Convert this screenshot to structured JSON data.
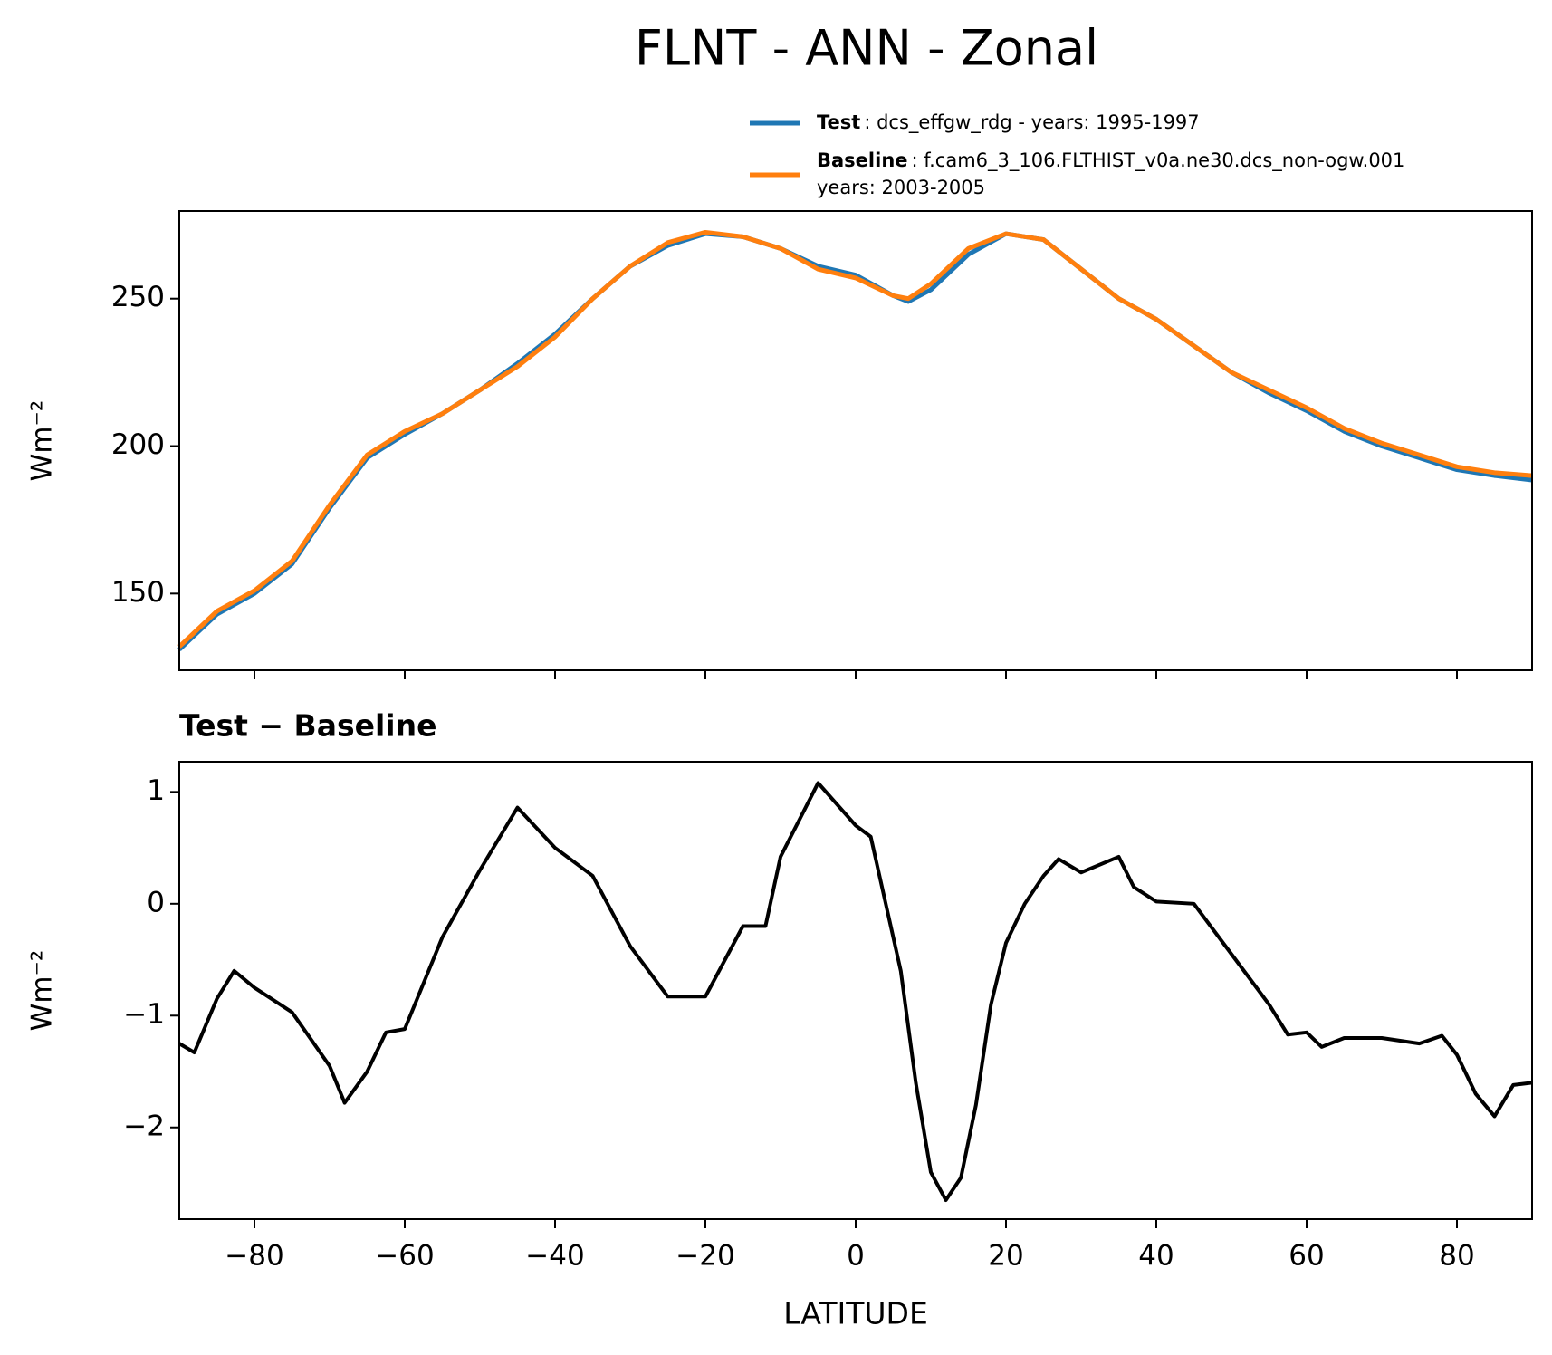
{
  "chart_data": [
    {
      "type": "line",
      "title": "FLNT - ANN - Zonal",
      "ylabel": "Wm⁻²",
      "x": [
        -90,
        -85,
        -80,
        -75,
        -70,
        -65,
        -60,
        -55,
        -50,
        -45,
        -40,
        -35,
        -30,
        -25,
        -20,
        -15,
        -10,
        -5,
        0,
        5,
        7,
        10,
        15,
        20,
        25,
        30,
        35,
        40,
        45,
        50,
        55,
        60,
        65,
        70,
        75,
        80,
        85,
        90
      ],
      "series": [
        {
          "name": "Test",
          "description": [
            ": dcs_effgw_rdg - years: 1995-1997"
          ],
          "color": "#1f77b4",
          "values": [
            131,
            143,
            150,
            160,
            179,
            196,
            204,
            211,
            219,
            228,
            238,
            250,
            261,
            268,
            272,
            271,
            267,
            261,
            258,
            251,
            249,
            253,
            265,
            272,
            270,
            260,
            250,
            243,
            234,
            225,
            218,
            212,
            205,
            200,
            196,
            192,
            190,
            188.5
          ]
        },
        {
          "name": "Baseline",
          "description": [
            ": f.cam6_3_106.FLTHIST_v0a.ne30.dcs_non-ogw.001",
            "years: 2003-2005"
          ],
          "color": "#ff7f0e",
          "values": [
            132,
            144,
            151,
            161,
            180,
            197,
            205,
            211,
            219,
            227,
            237,
            250,
            261,
            269,
            272.5,
            271,
            267,
            260,
            257,
            251,
            250,
            255,
            267,
            272,
            270,
            260,
            250,
            243,
            234,
            225,
            219,
            213,
            206,
            201,
            197,
            193,
            191,
            190
          ]
        }
      ],
      "xlim": [
        -90,
        90
      ],
      "xticks": [
        -80,
        -60,
        -40,
        -20,
        0,
        20,
        40,
        60,
        80
      ],
      "ylim": [
        124,
        279.7
      ],
      "yticks": [
        150,
        200,
        250
      ]
    },
    {
      "type": "line",
      "title": "Test − Baseline",
      "ylabel": "Wm⁻²",
      "xlabel": "LATITUDE",
      "color": "#000000",
      "x": [
        -90,
        -88,
        -85,
        -82.7,
        -80,
        -75,
        -70,
        -68,
        -65,
        -62.5,
        -60,
        -55,
        -50,
        -45,
        -40,
        -35,
        -30,
        -25,
        -20,
        -15,
        -12,
        -10,
        -5,
        0,
        2,
        4,
        6,
        8,
        10,
        12,
        14,
        16,
        18,
        20,
        22.5,
        25,
        27,
        30,
        35,
        37,
        40,
        45,
        50,
        55,
        57.5,
        60,
        62,
        65,
        70,
        75,
        78,
        80,
        82.5,
        85,
        87.5,
        90
      ],
      "values": [
        -1.25,
        -1.33,
        -0.85,
        -0.6,
        -0.75,
        -0.97,
        -1.45,
        -1.78,
        -1.5,
        -1.15,
        -1.12,
        -0.3,
        0.3,
        0.86,
        0.5,
        0.25,
        -0.38,
        -0.83,
        -0.83,
        -0.2,
        -0.2,
        0.42,
        1.08,
        0.7,
        0.6,
        0,
        -0.6,
        -1.6,
        -2.4,
        -2.65,
        -2.45,
        -1.8,
        -0.9,
        -0.35,
        0,
        0.25,
        0.4,
        0.28,
        0.42,
        0.15,
        0.02,
        0,
        -0.45,
        -0.9,
        -1.17,
        -1.15,
        -1.28,
        -1.2,
        -1.2,
        -1.25,
        -1.18,
        -1.35,
        -1.7,
        -1.9,
        -1.62,
        -1.6
      ],
      "xlim": [
        -90,
        90
      ],
      "xticks": [
        {
          "value": -80,
          "label": "−80"
        },
        {
          "value": -60,
          "label": "−60"
        },
        {
          "value": -40,
          "label": "−40"
        },
        {
          "value": -20,
          "label": "−20"
        },
        0,
        20,
        40,
        60,
        80
      ],
      "ylim": [
        -2.82,
        1.27
      ],
      "yticks": [
        {
          "value": -2,
          "label": "−2"
        },
        {
          "value": -1,
          "label": "−1"
        },
        0,
        1
      ]
    }
  ]
}
